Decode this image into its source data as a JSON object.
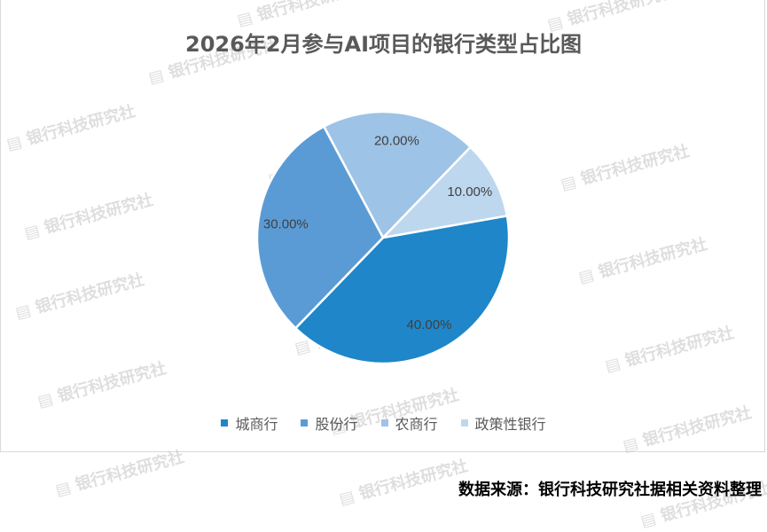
{
  "watermark": "银行科技研究社",
  "source": "数据来源：银行科技研究社据相关资料整理",
  "chart_data": {
    "type": "pie",
    "title": "2026年2月参与AI项目的银行类型占比图",
    "categories": [
      "城商行",
      "股份行",
      "农商行",
      "政策性银行"
    ],
    "values": [
      40,
      30,
      20,
      10
    ],
    "data_labels": [
      "40.00%",
      "30.00%",
      "20.00%",
      "10.00%"
    ],
    "colors": [
      "#1f86c9",
      "#5b9bd5",
      "#9dc3e6",
      "#bdd7ee"
    ],
    "legend_position": "bottom"
  }
}
